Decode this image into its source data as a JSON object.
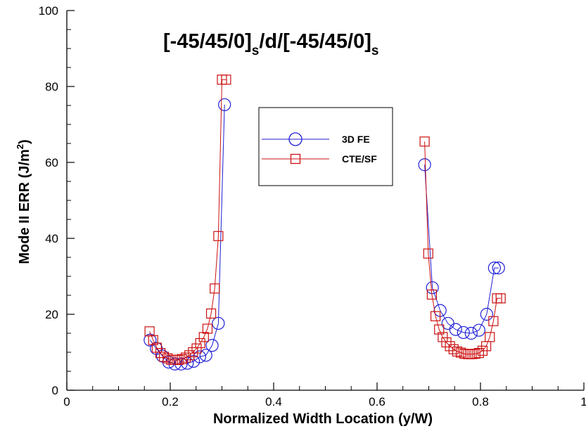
{
  "chart_data": {
    "type": "line",
    "title": {
      "parts": [
        "[-45/45/0]",
        "s",
        "/d/[-45/45/0]",
        "s"
      ]
    },
    "xlabel": "Normalized Width Location (y/W)",
    "ylabel": {
      "main": "Mode II ERR (J/m",
      "sup": "2",
      "end": ")"
    },
    "xlim": [
      0,
      1
    ],
    "ylim": [
      0,
      100
    ],
    "x_ticks": [
      0,
      0.2,
      0.4,
      0.6,
      0.8,
      1
    ],
    "x_tick_labels": [
      "0",
      "0.2",
      "0.4",
      "0.6",
      "0.8",
      "1"
    ],
    "y_ticks": [
      0,
      20,
      40,
      60,
      80,
      100
    ],
    "y_tick_labels": [
      "0",
      "20",
      "40",
      "60",
      "80",
      "100"
    ],
    "grid": false,
    "legend_position": "upper-center",
    "series": [
      {
        "name": "3D FE",
        "color": "#1f1fd6",
        "marker": "circle",
        "segments": [
          {
            "x": [
              0.161,
              0.173,
              0.185,
              0.197,
              0.209,
              0.221,
              0.233,
              0.245,
              0.257,
              0.269,
              0.281,
              0.293,
              0.305
            ],
            "y": [
              13.2,
              11.0,
              9.0,
              7.4,
              6.9,
              6.9,
              7.1,
              7.6,
              8.8,
              9.2,
              11.8,
              17.6,
              75.2
            ]
          },
          {
            "x": [
              0.692,
              0.707,
              0.722,
              0.737,
              0.752,
              0.767,
              0.782,
              0.797,
              0.812,
              0.827,
              0.835
            ],
            "y": [
              59.4,
              27.0,
              21.0,
              17.6,
              16.0,
              15.2,
              15.0,
              15.8,
              20.0,
              32.2,
              32.2
            ]
          }
        ]
      },
      {
        "name": "CTE/SF",
        "color": "#cc1111",
        "marker": "square",
        "segments": [
          {
            "x": [
              0.16,
              0.167,
              0.174,
              0.181,
              0.188,
              0.195,
              0.202,
              0.209,
              0.216,
              0.223,
              0.23,
              0.237,
              0.244,
              0.251,
              0.258,
              0.265,
              0.272,
              0.279,
              0.286,
              0.293,
              0.3,
              0.308
            ],
            "y": [
              15.5,
              13.2,
              11.2,
              9.8,
              8.8,
              8.4,
              8.0,
              8.0,
              8.0,
              8.2,
              8.6,
              9.2,
              10.0,
              11.0,
              12.4,
              14.0,
              16.2,
              20.2,
              26.8,
              40.6,
              81.8,
              81.8
            ]
          },
          {
            "x": [
              0.692,
              0.699,
              0.706,
              0.713,
              0.72,
              0.727,
              0.734,
              0.741,
              0.748,
              0.755,
              0.762,
              0.769,
              0.776,
              0.783,
              0.79,
              0.797,
              0.804,
              0.811,
              0.818,
              0.825,
              0.832,
              0.839
            ],
            "y": [
              65.5,
              36.0,
              25.2,
              19.5,
              16.0,
              14.0,
              12.6,
              11.6,
              10.8,
              10.2,
              9.9,
              9.6,
              9.5,
              9.5,
              9.6,
              9.8,
              10.4,
              11.6,
              14.0,
              18.2,
              24.2,
              24.2
            ]
          }
        ]
      }
    ]
  }
}
